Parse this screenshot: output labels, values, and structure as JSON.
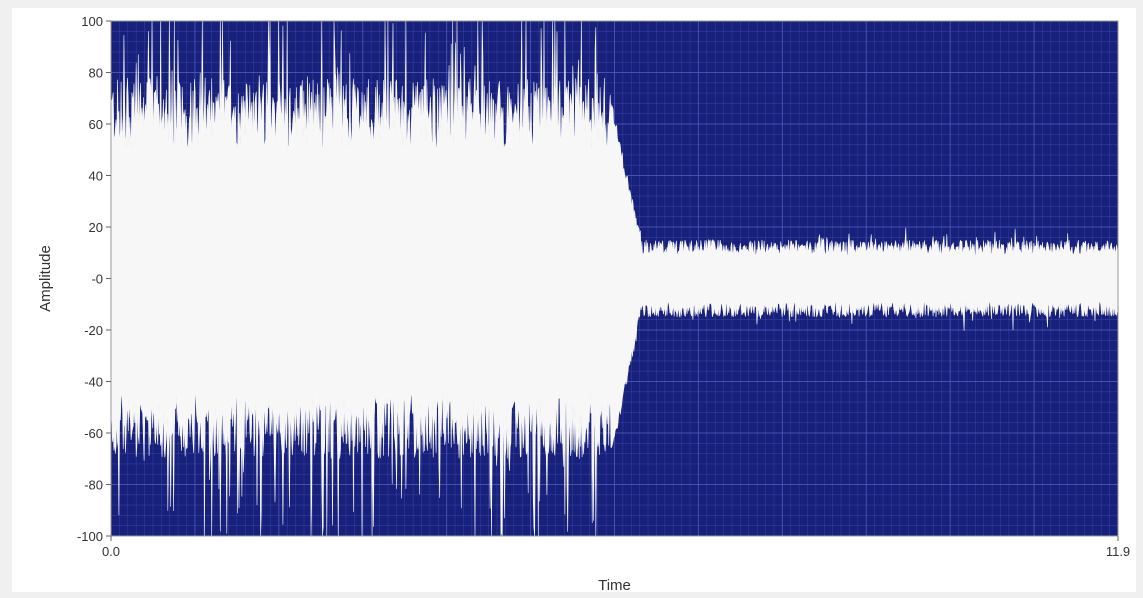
{
  "colors": {
    "plot_background": "#17207a",
    "grid": "#4a55b8",
    "waveform": "#f7f7f7",
    "axis_text": "#333333"
  },
  "chart_data": {
    "type": "line",
    "title": "",
    "xlabel": "Time",
    "ylabel": "Amplitude",
    "xlim": [
      0.0,
      11.9
    ],
    "ylim": [
      -100,
      100
    ],
    "x_tick_labels": [
      "0.0",
      "11.9"
    ],
    "y_ticks": [
      100,
      80,
      60,
      40,
      20,
      0,
      -20,
      -40,
      -60,
      -80,
      -100
    ],
    "y_tick_labels": [
      "100",
      "80",
      "60",
      "40",
      "20",
      "-0",
      "-20",
      "-40",
      "-60",
      "-80",
      "-100"
    ],
    "grid": true,
    "series": [
      {
        "description_of_envelope": "waveform",
        "envelope": [
          {
            "x_range": [
              0.0,
              5.9
            ],
            "upper": 90,
            "lower": -88
          },
          {
            "x_range": [
              6.1,
              11.9
            ],
            "upper": 12,
            "lower": -12
          }
        ],
        "transition_x": 6.0
      }
    ]
  }
}
